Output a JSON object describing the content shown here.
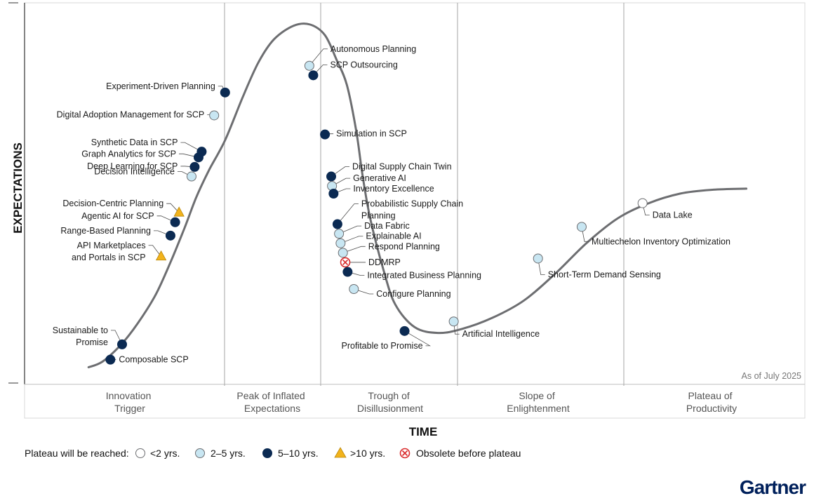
{
  "chart_data": {
    "type": "scatter",
    "title": "",
    "xlabel": "TIME",
    "ylabel": "EXPECTATIONS",
    "as_of": "As of July 2025",
    "brand": "Gartner",
    "phases": [
      {
        "lines": [
          "Innovation",
          "Trigger"
        ]
      },
      {
        "lines": [
          "Peak of Inflated",
          "Expectations"
        ]
      },
      {
        "lines": [
          "Trough of",
          "Disillusionment"
        ]
      },
      {
        "lines": [
          "Slope of",
          "Enlightenment"
        ]
      },
      {
        "lines": [
          "Plateau of",
          "Productivity"
        ]
      }
    ],
    "legend": {
      "title": "Plateau will be reached:",
      "items": [
        {
          "key": "lt2",
          "label": "<2 yrs."
        },
        {
          "key": "2to5",
          "label": "2–5 yrs."
        },
        {
          "key": "5to10",
          "label": "5–10 yrs."
        },
        {
          "key": "gt10",
          "label": ">10 yrs."
        },
        {
          "key": "obsolete",
          "label": "Obsolete before plateau"
        }
      ]
    },
    "marker_colors": {
      "lt2": "#ffffff",
      "2to5": "#c8e6f2",
      "5to10": "#0b2a52",
      "gt10": "#f2b31c",
      "obsolete": "#d9292a"
    },
    "curve": [
      [
        0.082,
        0.045
      ],
      [
        0.1,
        0.06
      ],
      [
        0.124,
        0.105
      ],
      [
        0.145,
        0.16
      ],
      [
        0.168,
        0.235
      ],
      [
        0.188,
        0.325
      ],
      [
        0.205,
        0.41
      ],
      [
        0.22,
        0.49
      ],
      [
        0.236,
        0.56
      ],
      [
        0.257,
        0.64
      ],
      [
        0.28,
        0.755
      ],
      [
        0.3,
        0.845
      ],
      [
        0.32,
        0.905
      ],
      [
        0.345,
        0.94
      ],
      [
        0.366,
        0.943
      ],
      [
        0.385,
        0.915
      ],
      [
        0.4,
        0.85
      ],
      [
        0.413,
        0.785
      ],
      [
        0.425,
        0.665
      ],
      [
        0.433,
        0.55
      ],
      [
        0.443,
        0.435
      ],
      [
        0.46,
        0.3
      ],
      [
        0.475,
        0.21
      ],
      [
        0.5,
        0.15
      ],
      [
        0.53,
        0.135
      ],
      [
        0.56,
        0.145
      ],
      [
        0.6,
        0.175
      ],
      [
        0.64,
        0.22
      ],
      [
        0.68,
        0.29
      ],
      [
        0.72,
        0.37
      ],
      [
        0.76,
        0.435
      ],
      [
        0.8,
        0.475
      ],
      [
        0.84,
        0.5
      ],
      [
        0.88,
        0.51
      ],
      [
        0.925,
        0.513
      ]
    ],
    "technologies": [
      {
        "name": "Composable SCP",
        "x": 0.11,
        "y": 0.065,
        "eta": "5to10"
      },
      {
        "name": "Sustainable to Promise",
        "x": 0.125,
        "y": 0.105,
        "eta": "5to10"
      },
      {
        "name": "API Marketplaces and Portals in SCP",
        "x": 0.175,
        "y": 0.335,
        "eta": "gt10"
      },
      {
        "name": "Range-Based Planning",
        "x": 0.187,
        "y": 0.39,
        "eta": "5to10"
      },
      {
        "name": "Agentic AI for SCP",
        "x": 0.193,
        "y": 0.425,
        "eta": "5to10"
      },
      {
        "name": "Decision-Centric Planning",
        "x": 0.198,
        "y": 0.45,
        "eta": "gt10"
      },
      {
        "name": "Decision Intelligence",
        "x": 0.214,
        "y": 0.545,
        "eta": "2to5"
      },
      {
        "name": "Deep Learning for SCP",
        "x": 0.218,
        "y": 0.57,
        "eta": "5to10"
      },
      {
        "name": "Graph Analytics for SCP",
        "x": 0.223,
        "y": 0.595,
        "eta": "5to10"
      },
      {
        "name": "Synthetic Data in SCP",
        "x": 0.227,
        "y": 0.61,
        "eta": "5to10"
      },
      {
        "name": "Digital Adoption Management for SCP",
        "x": 0.243,
        "y": 0.705,
        "eta": "2to5"
      },
      {
        "name": "Experiment-Driven Planning",
        "x": 0.257,
        "y": 0.765,
        "eta": "5to10"
      },
      {
        "name": "Autonomous Planning",
        "x": 0.365,
        "y": 0.835,
        "eta": "2to5"
      },
      {
        "name": "SCP Outsourcing",
        "x": 0.37,
        "y": 0.81,
        "eta": "5to10"
      },
      {
        "name": "Simulation in SCP",
        "x": 0.385,
        "y": 0.655,
        "eta": "5to10"
      },
      {
        "name": "Digital Supply Chain Twin",
        "x": 0.393,
        "y": 0.545,
        "eta": "5to10"
      },
      {
        "name": "Generative AI",
        "x": 0.394,
        "y": 0.52,
        "eta": "2to5"
      },
      {
        "name": "Inventory Excellence",
        "x": 0.396,
        "y": 0.5,
        "eta": "5to10"
      },
      {
        "name": "Probabilistic Supply Chain Planning",
        "x": 0.401,
        "y": 0.42,
        "eta": "5to10"
      },
      {
        "name": "Data Fabric",
        "x": 0.403,
        "y": 0.395,
        "eta": "2to5"
      },
      {
        "name": "Explainable AI",
        "x": 0.405,
        "y": 0.37,
        "eta": "2to5"
      },
      {
        "name": "Respond Planning",
        "x": 0.408,
        "y": 0.345,
        "eta": "2to5"
      },
      {
        "name": "DDMRP",
        "x": 0.411,
        "y": 0.32,
        "eta": "obsolete"
      },
      {
        "name": "Integrated Business Planning",
        "x": 0.414,
        "y": 0.295,
        "eta": "5to10"
      },
      {
        "name": "Configure Planning",
        "x": 0.422,
        "y": 0.25,
        "eta": "2to5"
      },
      {
        "name": "Profitable to Promise",
        "x": 0.487,
        "y": 0.14,
        "eta": "5to10"
      },
      {
        "name": "Artificial Intelligence",
        "x": 0.55,
        "y": 0.165,
        "eta": "2to5"
      },
      {
        "name": "Short-Term Demand Sensing",
        "x": 0.658,
        "y": 0.33,
        "eta": "2to5"
      },
      {
        "name": "Multiechelon Inventory Optimization",
        "x": 0.714,
        "y": 0.413,
        "eta": "2to5"
      },
      {
        "name": "Data Lake",
        "x": 0.792,
        "y": 0.475,
        "eta": "lt2"
      }
    ]
  }
}
